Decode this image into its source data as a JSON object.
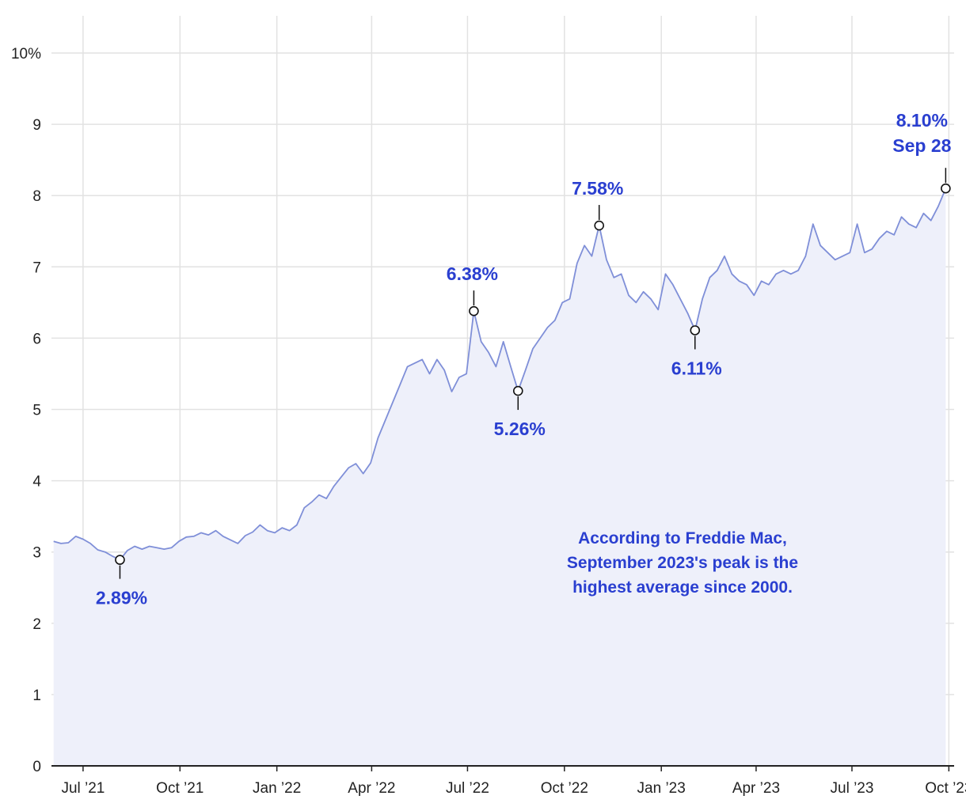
{
  "chart_data": {
    "type": "area",
    "title": "",
    "xlabel": "",
    "ylabel": "",
    "ylim": [
      0,
      10
    ],
    "y_ticks": [
      {
        "value": 0,
        "label": "0"
      },
      {
        "value": 1,
        "label": "1"
      },
      {
        "value": 2,
        "label": "2"
      },
      {
        "value": 3,
        "label": "3"
      },
      {
        "value": 4,
        "label": "4"
      },
      {
        "value": 5,
        "label": "5"
      },
      {
        "value": 6,
        "label": "6"
      },
      {
        "value": 7,
        "label": "7"
      },
      {
        "value": 8,
        "label": "8"
      },
      {
        "value": 9,
        "label": "9"
      },
      {
        "value": 10,
        "label": "10%"
      }
    ],
    "xlim": [
      "2021-06-01",
      "2023-10-06"
    ],
    "x_ticks": [
      {
        "date": "2021-07-01",
        "label": "Jul ’21"
      },
      {
        "date": "2021-10-01",
        "label": "Oct ’21"
      },
      {
        "date": "2022-01-01",
        "label": "Jan ’22"
      },
      {
        "date": "2022-04-01",
        "label": "Apr ’22"
      },
      {
        "date": "2022-07-01",
        "label": "Jul ’22"
      },
      {
        "date": "2022-10-01",
        "label": "Oct ’22"
      },
      {
        "date": "2023-01-01",
        "label": "Jan ’23"
      },
      {
        "date": "2023-04-01",
        "label": "Apr ’23"
      },
      {
        "date": "2023-07-01",
        "label": "Jul ’23"
      },
      {
        "date": "2023-10-01",
        "label": "Oct ’23"
      }
    ],
    "grid": true,
    "colors": {
      "line": "#7f8fd8",
      "fill": "#eef0fa",
      "grid": "#e2e2e2",
      "axis": "#222222",
      "accent": "#2a3fd0"
    },
    "series": [
      {
        "points": [
          [
            "2021-06-03",
            3.15
          ],
          [
            "2021-06-10",
            3.12
          ],
          [
            "2021-06-17",
            3.13
          ],
          [
            "2021-06-24",
            3.22
          ],
          [
            "2021-07-01",
            3.18
          ],
          [
            "2021-07-08",
            3.12
          ],
          [
            "2021-07-15",
            3.03
          ],
          [
            "2021-07-22",
            3.0
          ],
          [
            "2021-07-29",
            2.94
          ],
          [
            "2021-08-05",
            2.89
          ],
          [
            "2021-08-12",
            3.02
          ],
          [
            "2021-08-19",
            3.08
          ],
          [
            "2021-08-26",
            3.04
          ],
          [
            "2021-09-02",
            3.08
          ],
          [
            "2021-09-09",
            3.06
          ],
          [
            "2021-09-16",
            3.04
          ],
          [
            "2021-09-23",
            3.06
          ],
          [
            "2021-09-30",
            3.15
          ],
          [
            "2021-10-07",
            3.21
          ],
          [
            "2021-10-14",
            3.22
          ],
          [
            "2021-10-21",
            3.27
          ],
          [
            "2021-10-28",
            3.24
          ],
          [
            "2021-11-04",
            3.3
          ],
          [
            "2021-11-11",
            3.22
          ],
          [
            "2021-11-18",
            3.17
          ],
          [
            "2021-11-25",
            3.12
          ],
          [
            "2021-12-02",
            3.23
          ],
          [
            "2021-12-09",
            3.28
          ],
          [
            "2021-12-16",
            3.38
          ],
          [
            "2021-12-23",
            3.3
          ],
          [
            "2021-12-30",
            3.27
          ],
          [
            "2022-01-06",
            3.34
          ],
          [
            "2022-01-13",
            3.3
          ],
          [
            "2022-01-20",
            3.38
          ],
          [
            "2022-01-27",
            3.62
          ],
          [
            "2022-02-03",
            3.7
          ],
          [
            "2022-02-10",
            3.8
          ],
          [
            "2022-02-17",
            3.75
          ],
          [
            "2022-02-24",
            3.92
          ],
          [
            "2022-03-03",
            4.05
          ],
          [
            "2022-03-10",
            4.18
          ],
          [
            "2022-03-17",
            4.24
          ],
          [
            "2022-03-24",
            4.1
          ],
          [
            "2022-03-31",
            4.25
          ],
          [
            "2022-04-07",
            4.6
          ],
          [
            "2022-04-14",
            4.85
          ],
          [
            "2022-04-21",
            5.1
          ],
          [
            "2022-04-28",
            5.35
          ],
          [
            "2022-05-05",
            5.6
          ],
          [
            "2022-05-12",
            5.65
          ],
          [
            "2022-05-19",
            5.7
          ],
          [
            "2022-05-26",
            5.5
          ],
          [
            "2022-06-02",
            5.7
          ],
          [
            "2022-06-09",
            5.55
          ],
          [
            "2022-06-16",
            5.25
          ],
          [
            "2022-06-23",
            5.45
          ],
          [
            "2022-06-30",
            5.5
          ],
          [
            "2022-07-07",
            6.38
          ],
          [
            "2022-07-14",
            5.95
          ],
          [
            "2022-07-21",
            5.8
          ],
          [
            "2022-07-28",
            5.6
          ],
          [
            "2022-08-04",
            5.95
          ],
          [
            "2022-08-11",
            5.6
          ],
          [
            "2022-08-18",
            5.26
          ],
          [
            "2022-08-25",
            5.55
          ],
          [
            "2022-09-01",
            5.85
          ],
          [
            "2022-09-08",
            6.0
          ],
          [
            "2022-09-15",
            6.15
          ],
          [
            "2022-09-22",
            6.25
          ],
          [
            "2022-09-29",
            6.5
          ],
          [
            "2022-10-06",
            6.55
          ],
          [
            "2022-10-13",
            7.05
          ],
          [
            "2022-10-20",
            7.3
          ],
          [
            "2022-10-27",
            7.15
          ],
          [
            "2022-11-03",
            7.58
          ],
          [
            "2022-11-10",
            7.1
          ],
          [
            "2022-11-17",
            6.85
          ],
          [
            "2022-11-24",
            6.9
          ],
          [
            "2022-12-01",
            6.6
          ],
          [
            "2022-12-08",
            6.5
          ],
          [
            "2022-12-15",
            6.65
          ],
          [
            "2022-12-22",
            6.55
          ],
          [
            "2022-12-29",
            6.4
          ],
          [
            "2023-01-05",
            6.9
          ],
          [
            "2023-01-12",
            6.75
          ],
          [
            "2023-01-19",
            6.55
          ],
          [
            "2023-01-26",
            6.35
          ],
          [
            "2023-02-02",
            6.11
          ],
          [
            "2023-02-09",
            6.55
          ],
          [
            "2023-02-16",
            6.85
          ],
          [
            "2023-02-23",
            6.95
          ],
          [
            "2023-03-02",
            7.15
          ],
          [
            "2023-03-09",
            6.9
          ],
          [
            "2023-03-16",
            6.8
          ],
          [
            "2023-03-23",
            6.75
          ],
          [
            "2023-03-30",
            6.6
          ],
          [
            "2023-04-06",
            6.8
          ],
          [
            "2023-04-13",
            6.75
          ],
          [
            "2023-04-20",
            6.9
          ],
          [
            "2023-04-27",
            6.95
          ],
          [
            "2023-05-04",
            6.9
          ],
          [
            "2023-05-11",
            6.95
          ],
          [
            "2023-05-18",
            7.15
          ],
          [
            "2023-05-25",
            7.6
          ],
          [
            "2023-06-01",
            7.3
          ],
          [
            "2023-06-08",
            7.2
          ],
          [
            "2023-06-15",
            7.1
          ],
          [
            "2023-06-22",
            7.15
          ],
          [
            "2023-06-29",
            7.2
          ],
          [
            "2023-07-06",
            7.6
          ],
          [
            "2023-07-13",
            7.2
          ],
          [
            "2023-07-20",
            7.25
          ],
          [
            "2023-07-27",
            7.4
          ],
          [
            "2023-08-03",
            7.5
          ],
          [
            "2023-08-10",
            7.45
          ],
          [
            "2023-08-17",
            7.7
          ],
          [
            "2023-08-24",
            7.6
          ],
          [
            "2023-08-31",
            7.55
          ],
          [
            "2023-09-07",
            7.75
          ],
          [
            "2023-09-14",
            7.65
          ],
          [
            "2023-09-21",
            7.85
          ],
          [
            "2023-09-28",
            8.1
          ]
        ]
      }
    ],
    "annotations": [
      {
        "date": "2021-08-05",
        "value": 2.89,
        "label": "2.89%",
        "position": "below"
      },
      {
        "date": "2022-07-07",
        "value": 6.38,
        "label": "6.38%",
        "position": "above"
      },
      {
        "date": "2022-08-18",
        "value": 5.26,
        "label": "5.26%",
        "position": "below"
      },
      {
        "date": "2022-11-03",
        "value": 7.58,
        "label": "7.58%",
        "position": "above"
      },
      {
        "date": "2023-02-02",
        "value": 6.11,
        "label": "6.11%",
        "position": "below"
      },
      {
        "date": "2023-09-28",
        "value": 8.1,
        "label": "8.10%",
        "label2": "Sep 28",
        "position": "above"
      }
    ],
    "note": [
      "According to Freddie Mac,",
      "September 2023's peak is the",
      "highest average since 2000."
    ]
  }
}
